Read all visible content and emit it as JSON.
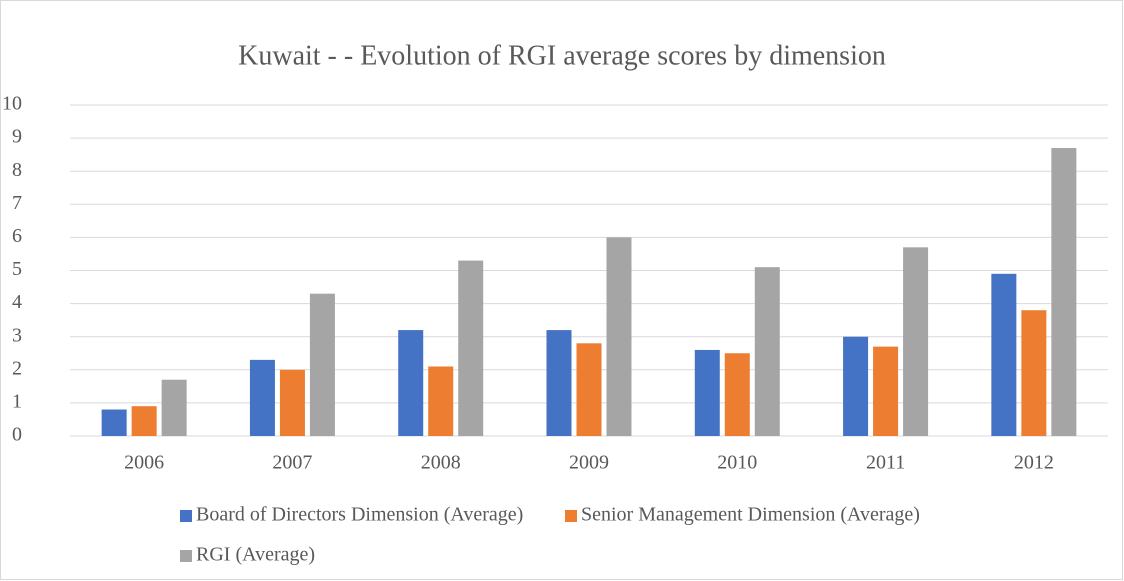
{
  "chart_data": {
    "type": "bar",
    "title": "Kuwait - - Evolution of RGI average scores by dimension",
    "categories": [
      "2006",
      "2007",
      "2008",
      "2009",
      "2010",
      "2011",
      "2012"
    ],
    "series": [
      {
        "name": "Board of Directors Dimension (Average)",
        "color": "#4472c4",
        "values": [
          0.8,
          2.3,
          3.2,
          3.2,
          2.6,
          3.0,
          4.9
        ]
      },
      {
        "name": "Senior Management Dimension (Average)",
        "color": "#ed7d31",
        "values": [
          0.9,
          2.0,
          2.1,
          2.8,
          2.5,
          2.7,
          3.8
        ]
      },
      {
        "name": "RGI (Average)",
        "color": "#a5a5a5",
        "values": [
          1.7,
          4.3,
          5.3,
          6.0,
          5.1,
          5.7,
          8.7
        ]
      }
    ],
    "ylim": [
      0,
      10
    ],
    "yticks": [
      0,
      1,
      2,
      3,
      4,
      5,
      6,
      7,
      8,
      9,
      10
    ],
    "grid": true,
    "legend": "bottom"
  }
}
